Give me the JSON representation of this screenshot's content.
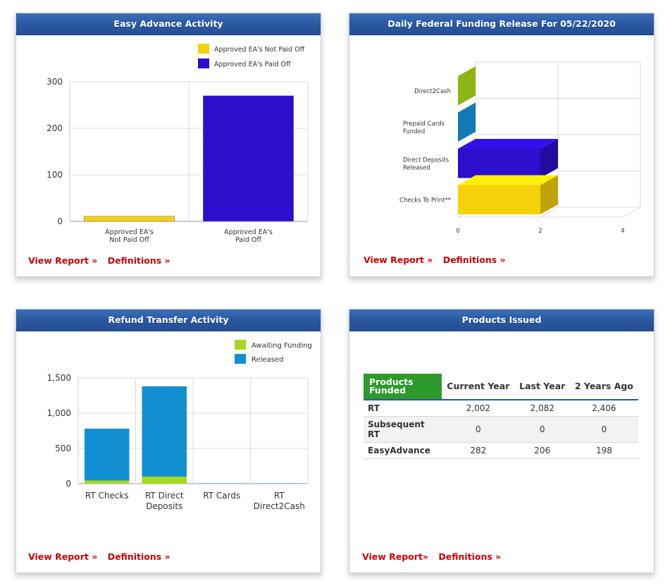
{
  "panels": {
    "easy_advance": {
      "title": "Easy Advance Activity",
      "view_report": "View Report »",
      "definitions": "Definitions »"
    },
    "daily_federal": {
      "title": "Daily Federal Funding Release For 05/22/2020",
      "view_report": "View Report »",
      "definitions": "Definitions »"
    },
    "refund_transfer": {
      "title": "Refund Transfer Activity",
      "view_report": "View Report »",
      "definitions": "Definitions »"
    },
    "products_issued": {
      "title": "Products Issued",
      "view_report": "View Report»",
      "definitions": "Definitions »"
    }
  },
  "chart_data": [
    {
      "type": "bar",
      "categories": [
        "Approved EA's Not Paid Off",
        "Approved EA's Paid Off"
      ],
      "series": [
        {
          "name": "Approved EA's Not Paid Off",
          "color": "#f5d10a",
          "values": [
            11,
            null
          ]
        },
        {
          "name": "Approved EA's Paid Off",
          "color": "#2b0fcc",
          "values": [
            null,
            270
          ]
        }
      ],
      "yticks": [
        "0",
        "100",
        "200",
        "300"
      ],
      "ylim": [
        0,
        300
      ],
      "legend": "top-right",
      "grid": true
    },
    {
      "type": "bar",
      "orientation": "horizontal-3d",
      "categories": [
        "Direct2Cash",
        "Prepaid Cards Funded",
        "Direct Deposits Released",
        "Checks To Print**"
      ],
      "values": [
        0,
        0,
        2,
        2
      ],
      "colors": [
        "#8db414",
        "#1478b4",
        "#2b0fcc",
        "#f5d10a"
      ],
      "xticks": [
        "0",
        "2",
        "4"
      ],
      "xlim": [
        0,
        4
      ],
      "grid": true
    },
    {
      "type": "bar",
      "stacked": true,
      "categories": [
        "RT Checks",
        "RT Direct Deposits",
        "RT Cards",
        "RT Direct2Cash"
      ],
      "series": [
        {
          "name": "Awaiting Funding",
          "color": "#a8d81e",
          "values": [
            45,
            100,
            0,
            0
          ]
        },
        {
          "name": "Released",
          "color": "#128fd0",
          "values": [
            735,
            1280,
            5,
            5
          ]
        }
      ],
      "yticks": [
        "0",
        "500",
        "1,000",
        "1,500"
      ],
      "ylim": [
        0,
        1500
      ],
      "legend": "top-right",
      "grid": true
    },
    {
      "type": "table",
      "columns": [
        "Products Funded",
        "Current Year",
        "Last Year",
        "2 Years Ago"
      ],
      "rows": [
        [
          "RT",
          "2,002",
          "2,082",
          "2,406"
        ],
        [
          "Subsequent RT",
          "0",
          "0",
          "0"
        ],
        [
          "EasyAdvance",
          "282",
          "206",
          "198"
        ]
      ]
    }
  ]
}
